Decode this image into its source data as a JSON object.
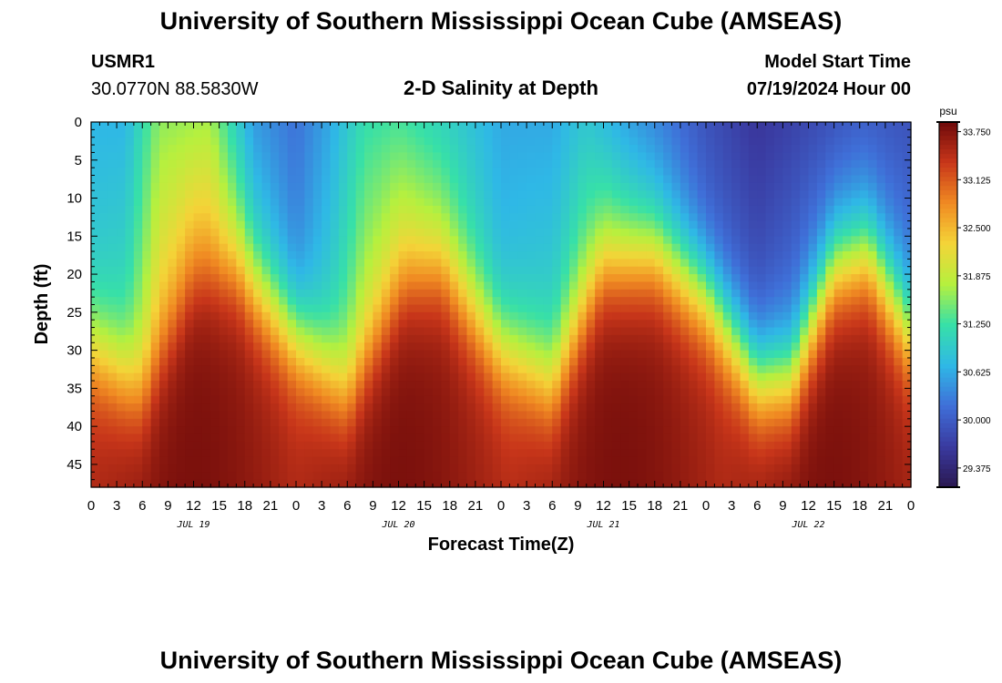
{
  "page": {
    "title": "University of Southern Mississippi Ocean Cube (AMSEAS)",
    "footer_title": "University of Southern Mississippi Ocean Cube (AMSEAS)"
  },
  "header": {
    "station_id": "USMR1",
    "station_coords": "30.0770N  88.5830W",
    "plot_title": "2-D Salinity at Depth",
    "model_start_label": "Model Start Time",
    "model_start_value": "07/19/2024 Hour 00"
  },
  "colors": {
    "background": "#ffffff",
    "axis": "#000000",
    "colormap": [
      "#2a1850",
      "#3a3aa0",
      "#3f6fd8",
      "#2fb8e6",
      "#37e0a8",
      "#b6f03e",
      "#f4d438",
      "#f08a22",
      "#c8361a",
      "#6e0a0a"
    ]
  },
  "chart_data": {
    "type": "heatmap",
    "title": "2-D Salinity at Depth",
    "xlabel": "Forecast Time(Z)",
    "ylabel": "Depth (ft)",
    "x_ticks": [
      "0",
      "3",
      "6",
      "9",
      "12",
      "15",
      "18",
      "21",
      "0",
      "3",
      "6",
      "9",
      "12",
      "15",
      "18",
      "21",
      "0",
      "3",
      "6",
      "9",
      "12",
      "15",
      "18",
      "21",
      "0",
      "3",
      "6",
      "9",
      "12",
      "15",
      "18",
      "21",
      "0"
    ],
    "x_range_hours": [
      0,
      96
    ],
    "day_labels": [
      {
        "label": "JUL 19",
        "hour": 12
      },
      {
        "label": "JUL 20",
        "hour": 36
      },
      {
        "label": "JUL 21",
        "hour": 60
      },
      {
        "label": "JUL 22",
        "hour": 84
      }
    ],
    "y_ticks": [
      "0",
      "5",
      "10",
      "15",
      "20",
      "25",
      "30",
      "35",
      "40",
      "45"
    ],
    "y_tick_values": [
      0,
      5,
      10,
      15,
      20,
      25,
      30,
      35,
      40,
      45
    ],
    "ylim": [
      0,
      48
    ],
    "y_inverted": true,
    "colorbar": {
      "units": "psu",
      "range": [
        29.125,
        33.875
      ],
      "tick_labels": [
        "33.750",
        "33.125",
        "32.500",
        "31.875",
        "31.250",
        "30.625",
        "30.000",
        "29.375"
      ],
      "tick_values": [
        33.75,
        33.125,
        32.5,
        31.875,
        31.25,
        30.625,
        30.0,
        29.375
      ]
    },
    "grid": {
      "time_step_hours": 1,
      "depth_step_ft": 1
    },
    "halocline_depth_ft": {
      "hours": [
        0,
        6,
        12,
        17,
        22,
        30,
        37,
        41,
        48,
        54,
        60,
        66,
        72,
        78,
        82,
        87,
        91,
        96
      ],
      "depth": [
        30,
        36,
        23,
        20,
        26,
        36,
        22,
        20,
        30,
        35,
        20,
        18,
        23,
        34,
        34,
        20,
        18,
        28
      ]
    },
    "surface_salinity_psu": {
      "hours": [
        0,
        4,
        8,
        14,
        19,
        24,
        28,
        32,
        36,
        42,
        48,
        54,
        58,
        62,
        68,
        72,
        78,
        84,
        90,
        96
      ],
      "value": [
        30.7,
        30.7,
        31.6,
        31.7,
        30.5,
        30.2,
        30.6,
        31.2,
        31.3,
        31.0,
        30.6,
        30.6,
        30.9,
        30.6,
        30.2,
        29.9,
        29.6,
        29.8,
        30.0,
        29.9
      ]
    },
    "deep_salinity_psu": {
      "depth_ft": 48,
      "min": 33.3,
      "max": 33.8,
      "peak_hours": [
        12,
        36,
        62,
        86
      ]
    },
    "upper_layer_variation_psu": {
      "hours": [
        0,
        12,
        24,
        36,
        48,
        60,
        72,
        84,
        96
      ],
      "value": [
        0.3,
        1.1,
        0.2,
        1.0,
        0.2,
        0.8,
        0.2,
        0.6,
        0.4
      ]
    }
  }
}
